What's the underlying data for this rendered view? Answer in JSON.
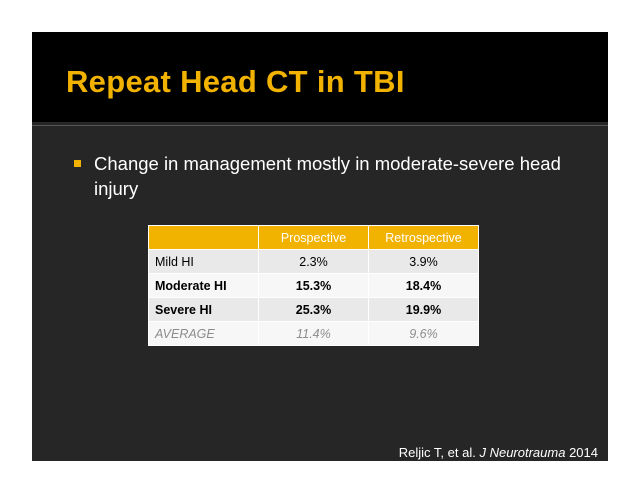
{
  "slide": {
    "title": "Repeat Head CT in TBI",
    "bullet": "Change in management mostly in moderate-severe head injury",
    "table": {
      "headers": [
        "",
        "Prospective",
        "Retrospective"
      ],
      "rows": [
        {
          "label": "Mild HI",
          "prospective": "2.3%",
          "retrospective": "3.9%"
        },
        {
          "label": "Moderate HI",
          "prospective": "15.3%",
          "retrospective": "18.4%"
        },
        {
          "label": "Severe HI",
          "prospective": "25.3%",
          "retrospective": "19.9%"
        },
        {
          "label": "AVERAGE",
          "prospective": "11.4%",
          "retrospective": "9.6%"
        }
      ]
    },
    "citation": {
      "authors": "Reljic T, et al.",
      "journal": "J Neurotrauma",
      "year": "2014"
    }
  },
  "colors": {
    "accent": "#f2b200",
    "background": "#262626",
    "title_band": "#000000"
  }
}
